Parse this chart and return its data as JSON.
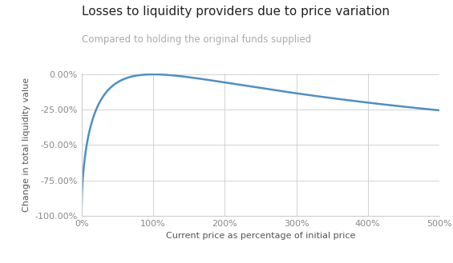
{
  "title": "Losses to liquidity providers due to price variation",
  "subtitle": "Compared to holding the original funds supplied",
  "xlabel": "Current price as percentage of initial price",
  "ylabel": "Change in total liquidity value",
  "xlim": [
    0,
    5.0
  ],
  "ylim": [
    -1.0,
    0.005
  ],
  "xticks": [
    0,
    1,
    2,
    3,
    4,
    5
  ],
  "xtick_labels": [
    "0%",
    "100%",
    "200%",
    "300%",
    "400%",
    "500%"
  ],
  "yticks": [
    0.0,
    -0.25,
    -0.5,
    -0.75,
    -1.0
  ],
  "ytick_labels": [
    "0.00%",
    "-25.00%",
    "-50.00%",
    "-75.00%",
    "-100.00%"
  ],
  "line_color": "#4d8fc9",
  "line_width": 1.8,
  "grid_color": "#cccccc",
  "background_color": "#ffffff",
  "title_fontsize": 11,
  "subtitle_fontsize": 8.5,
  "title_color": "#222222",
  "subtitle_color": "#aaaaaa",
  "axis_label_fontsize": 8,
  "tick_fontsize": 8,
  "tick_color": "#888888",
  "axis_label_color": "#555555"
}
